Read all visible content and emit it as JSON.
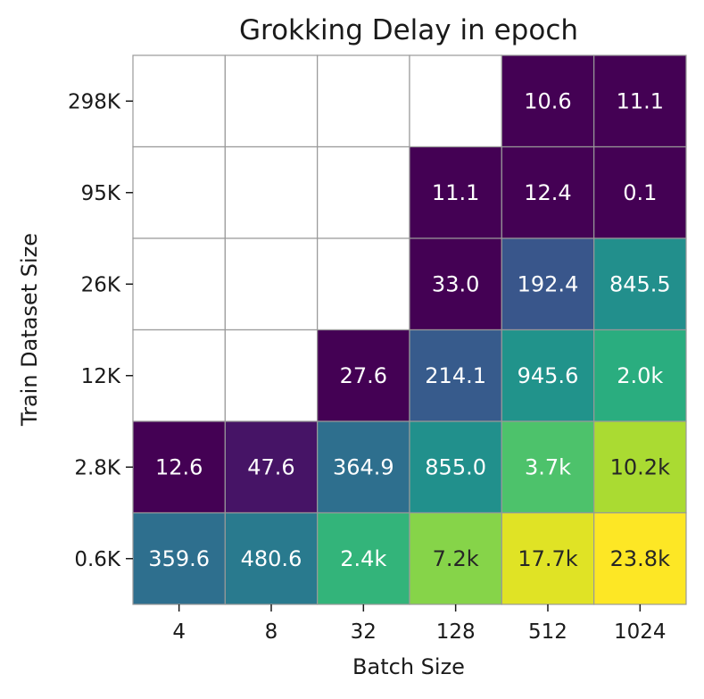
{
  "chart_data": {
    "type": "heatmap",
    "title": "Grokking Delay in epoch",
    "xlabel": "Batch Size",
    "ylabel": "Train Dataset Size",
    "x_categories": [
      "4",
      "8",
      "32",
      "128",
      "512",
      "1024"
    ],
    "y_categories": [
      "298K",
      "95K",
      "26K",
      "12K",
      "2.8K",
      "0.6K"
    ],
    "values": [
      [
        null,
        null,
        null,
        null,
        10.6,
        11.1
      ],
      [
        null,
        null,
        null,
        11.1,
        12.4,
        0.1
      ],
      [
        null,
        null,
        null,
        33.0,
        192.4,
        845.5
      ],
      [
        null,
        null,
        27.6,
        214.1,
        945.6,
        2000
      ],
      [
        12.6,
        47.6,
        364.9,
        855.0,
        3700,
        10200
      ],
      [
        359.6,
        480.6,
        2400,
        7200,
        17700,
        23800
      ]
    ],
    "labels": [
      [
        "",
        "",
        "",
        "",
        "10.6",
        "11.1"
      ],
      [
        "",
        "",
        "",
        "11.1",
        "12.4",
        "0.1"
      ],
      [
        "",
        "",
        "",
        "33.0",
        "192.4",
        "845.5"
      ],
      [
        "",
        "",
        "27.6",
        "214.1",
        "945.6",
        "2.0k"
      ],
      [
        "12.6",
        "47.6",
        "364.9",
        "855.0",
        "3.7k",
        "10.2k"
      ],
      [
        "359.6",
        "480.6",
        "2.4k",
        "7.2k",
        "17.7k",
        "23.8k"
      ]
    ],
    "colormap": "viridis",
    "color_scale": "log",
    "colorbar": false,
    "missing_color": "#ffffff",
    "grid_color": "#999999"
  }
}
